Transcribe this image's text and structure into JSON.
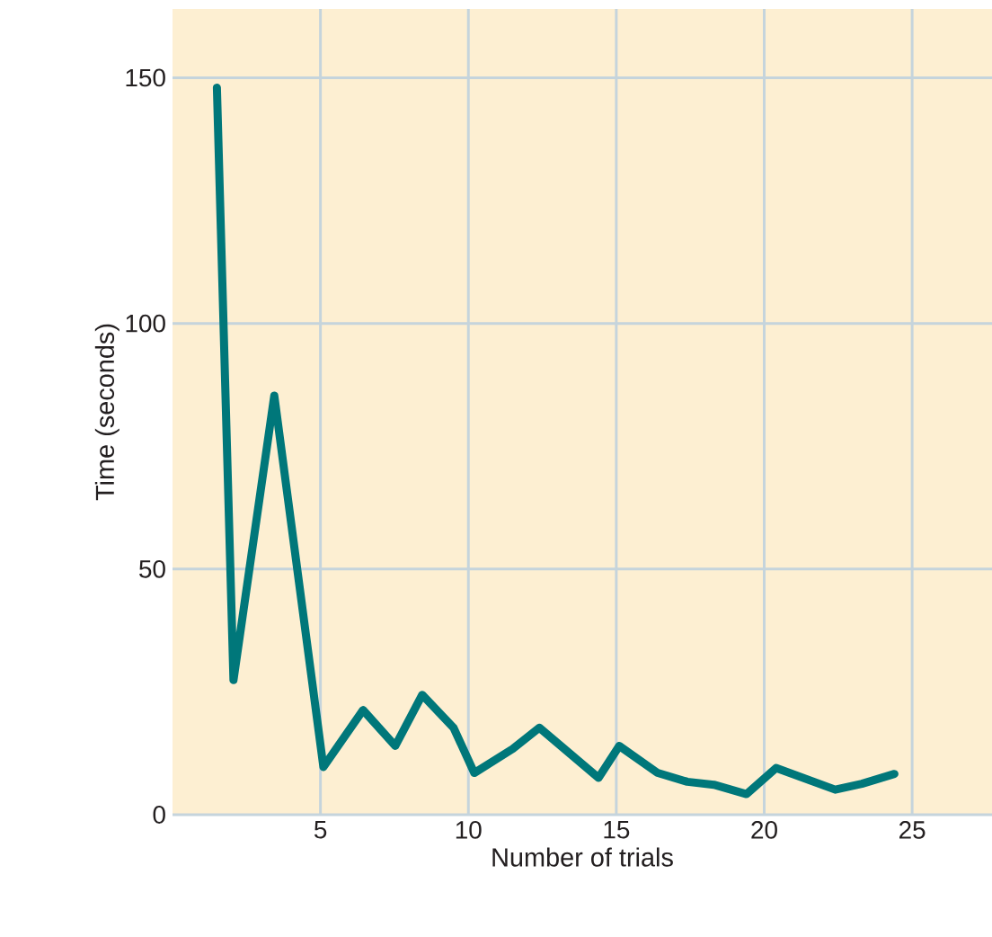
{
  "chart_data": {
    "type": "line",
    "xlabel": "Number of trials",
    "ylabel": "Time (seconds)",
    "x": [
      1.5,
      2.06,
      3.44,
      5.1,
      6.44,
      7.53,
      8.44,
      9.5,
      10.2,
      11.5,
      12.4,
      14.4,
      15.1,
      16.4,
      17.4,
      18.3,
      19.4,
      20.4,
      22.4,
      23.3,
      24.4
    ],
    "series": [
      {
        "color": "#00777a",
        "values": [
          148,
          27.4,
          85.3,
          9.7,
          21.3,
          14,
          24.4,
          17.7,
          8.5,
          13.4,
          17.7,
          7.5,
          14,
          8.5,
          6.7,
          6.1,
          4.2,
          9.5,
          5.1,
          6.3,
          8.3
        ]
      }
    ],
    "xlim": [
      0,
      27.7
    ],
    "ylim": [
      0,
      164
    ],
    "xticks": [
      5,
      10,
      15,
      20,
      25
    ],
    "yticks": [
      0,
      50,
      100,
      150
    ],
    "grid": true,
    "marker": "none",
    "line_style": "solid"
  }
}
